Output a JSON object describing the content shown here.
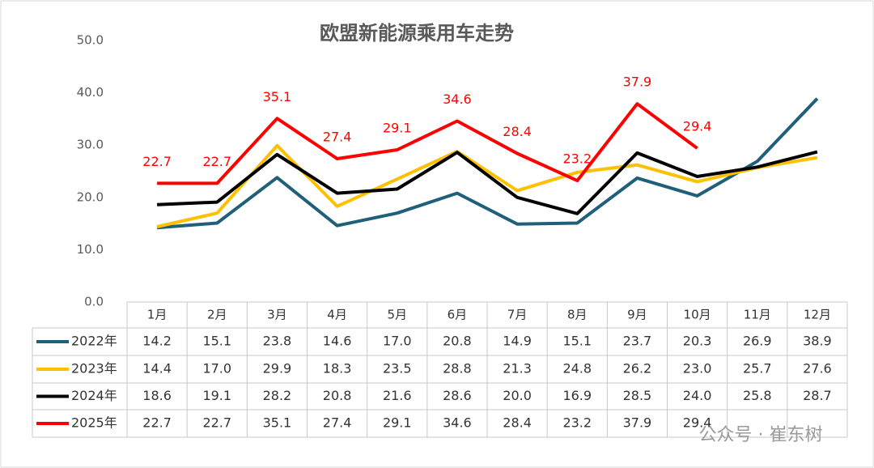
{
  "chart_data": {
    "type": "line",
    "title": "欧盟新能源乘用车走势",
    "categories": [
      "1月",
      "2月",
      "3月",
      "4月",
      "5月",
      "6月",
      "7月",
      "8月",
      "9月",
      "10月",
      "11月",
      "12月"
    ],
    "series": [
      {
        "name": "2022年",
        "color": "#1f5f7a",
        "values": [
          14.2,
          15.1,
          23.8,
          14.6,
          17.0,
          20.8,
          14.9,
          15.1,
          23.7,
          20.3,
          26.9,
          38.9
        ],
        "value_labels": [
          "14.2",
          "15.1",
          "23.8",
          "14.6",
          "17.0",
          "20.8",
          "14.9",
          "15.1",
          "23.7",
          "20.3",
          "26.9",
          "38.9"
        ]
      },
      {
        "name": "2023年",
        "color": "#ffc000",
        "values": [
          14.4,
          17.0,
          29.9,
          18.3,
          23.5,
          28.8,
          21.3,
          24.8,
          26.2,
          23.0,
          25.7,
          27.6
        ],
        "value_labels": [
          "14.4",
          "17.0",
          "29.9",
          "18.3",
          "23.5",
          "28.8",
          "21.3",
          "24.8",
          "26.2",
          "23.0",
          "25.7",
          "27.6"
        ]
      },
      {
        "name": "2024年",
        "color": "#000000",
        "values": [
          18.6,
          19.1,
          28.2,
          20.8,
          21.6,
          28.6,
          20.0,
          16.9,
          28.5,
          24.0,
          25.8,
          28.7
        ],
        "value_labels": [
          "18.6",
          "19.1",
          "28.2",
          "20.8",
          "21.6",
          "28.6",
          "20.0",
          "16.9",
          "28.5",
          "24.0",
          "25.8",
          "28.7"
        ]
      },
      {
        "name": "2025年",
        "color": "#ff0000",
        "values": [
          22.7,
          22.7,
          35.1,
          27.4,
          29.1,
          34.6,
          28.4,
          23.2,
          37.9,
          29.4,
          null,
          null
        ],
        "value_labels": [
          "22.7",
          "22.7",
          "35.1",
          "27.4",
          "29.1",
          "34.6",
          "28.4",
          "23.2",
          "37.9",
          "29.4",
          null,
          null
        ],
        "data_labels": true
      }
    ],
    "ylim": [
      0,
      50
    ],
    "yticks": [
      {
        "value": 0,
        "label": "0.0"
      },
      {
        "value": 10,
        "label": "10.0"
      },
      {
        "value": 20,
        "label": "20.0"
      },
      {
        "value": 30,
        "label": "30.0"
      },
      {
        "value": 40,
        "label": "40.0"
      },
      {
        "value": 50,
        "label": "50.0"
      }
    ],
    "grid": false,
    "watermark": "公众号 · 崔东树"
  }
}
